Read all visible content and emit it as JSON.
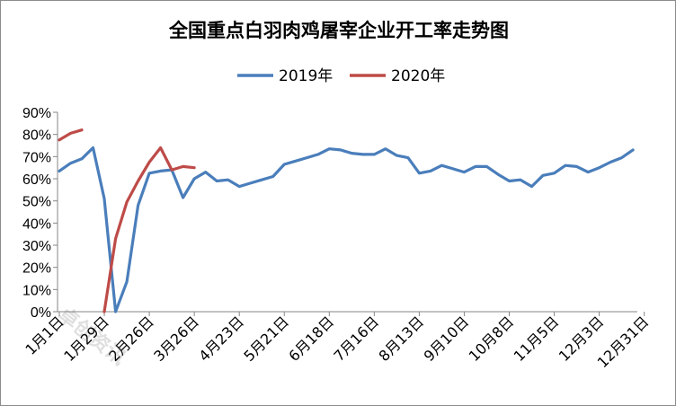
{
  "chart_data": {
    "type": "line",
    "title": "全国重点白羽肉鸡屠宰企业开工率走势图",
    "ylim": [
      0,
      90
    ],
    "y_ticks": [
      "0%",
      "10%",
      "20%",
      "30%",
      "40%",
      "50%",
      "60%",
      "70%",
      "80%",
      "90%"
    ],
    "x_tick_labels": [
      "1月1日",
      "1月29日",
      "2月26日",
      "3月26日",
      "4月23日",
      "5月21日",
      "6月18日",
      "7月16日",
      "8月13日",
      "9月10日",
      "10月8日",
      "11月5日",
      "12月3日",
      "12月31日"
    ],
    "legend_position": "top",
    "grid": false,
    "series": [
      {
        "name": "2019年",
        "color": "#4a7ebb",
        "values": [
          63.5,
          67,
          69,
          74,
          51,
          0,
          13.5,
          48,
          62.5,
          63.5,
          64,
          51.5,
          60,
          63,
          59,
          59.5,
          56.5,
          58,
          59.5,
          61,
          66.5,
          68,
          69.5,
          71,
          73.5,
          73,
          71.5,
          71,
          71,
          73.5,
          70.5,
          69.5,
          62.5,
          63.5,
          66,
          64.5,
          63,
          65.5,
          65.5,
          62,
          59,
          59.5,
          56.5,
          61.5,
          62.5,
          66,
          65.5,
          63,
          65,
          67.5,
          69.5,
          73
        ]
      },
      {
        "name": "2020年",
        "color": "#be4b48",
        "values": [
          77.5,
          80.5,
          82,
          null,
          0,
          33,
          49.5,
          59,
          67.5,
          74,
          64,
          65.5,
          65
        ]
      }
    ]
  },
  "watermark": "卓创资讯"
}
